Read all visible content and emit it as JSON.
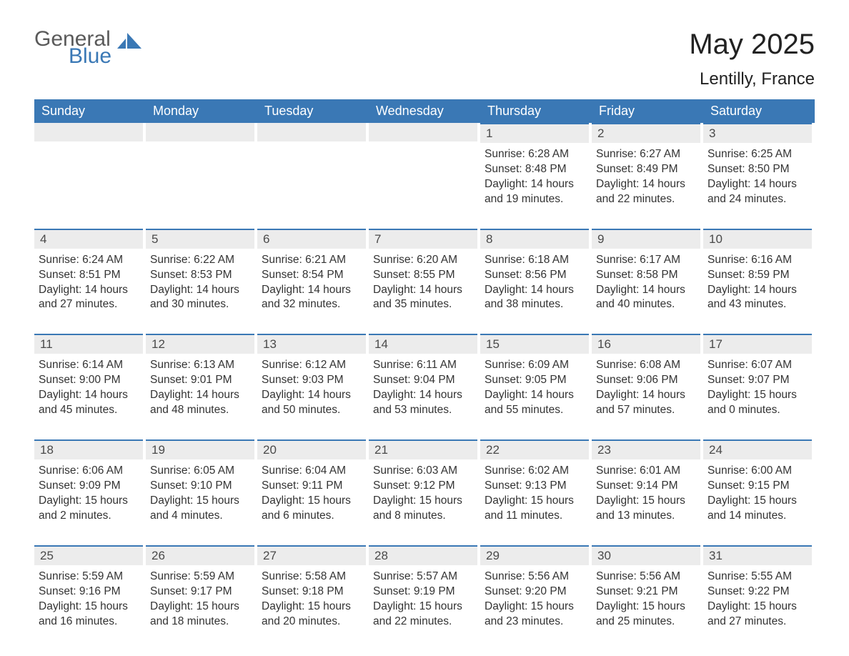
{
  "branding": {
    "logo_word1": "General",
    "logo_word2": "Blue",
    "logo_word1_color": "#5a5a5a",
    "logo_word2_color": "#3a78b5",
    "logo_icon_color": "#3a78b5"
  },
  "header": {
    "title": "May 2025",
    "subtitle": "Lentilly, France"
  },
  "colors": {
    "header_bar": "#3a78b5",
    "header_text": "#ffffff",
    "daynum_bg": "#ececec",
    "daynum_border": "#3a78b5",
    "body_text": "#333333",
    "background": "#ffffff"
  },
  "typography": {
    "title_fontsize": 40,
    "subtitle_fontsize": 24,
    "dayheader_fontsize": 18,
    "daynum_fontsize": 17,
    "body_fontsize": 15.5,
    "font_family": "Arial"
  },
  "calendar": {
    "type": "calendar-grid",
    "columns": [
      "Sunday",
      "Monday",
      "Tuesday",
      "Wednesday",
      "Thursday",
      "Friday",
      "Saturday"
    ],
    "weeks": [
      [
        {
          "empty": true
        },
        {
          "empty": true
        },
        {
          "empty": true
        },
        {
          "empty": true
        },
        {
          "day": "1",
          "sunrise": "Sunrise: 6:28 AM",
          "sunset": "Sunset: 8:48 PM",
          "dl1": "Daylight: 14 hours",
          "dl2": "and 19 minutes."
        },
        {
          "day": "2",
          "sunrise": "Sunrise: 6:27 AM",
          "sunset": "Sunset: 8:49 PM",
          "dl1": "Daylight: 14 hours",
          "dl2": "and 22 minutes."
        },
        {
          "day": "3",
          "sunrise": "Sunrise: 6:25 AM",
          "sunset": "Sunset: 8:50 PM",
          "dl1": "Daylight: 14 hours",
          "dl2": "and 24 minutes."
        }
      ],
      [
        {
          "day": "4",
          "sunrise": "Sunrise: 6:24 AM",
          "sunset": "Sunset: 8:51 PM",
          "dl1": "Daylight: 14 hours",
          "dl2": "and 27 minutes."
        },
        {
          "day": "5",
          "sunrise": "Sunrise: 6:22 AM",
          "sunset": "Sunset: 8:53 PM",
          "dl1": "Daylight: 14 hours",
          "dl2": "and 30 minutes."
        },
        {
          "day": "6",
          "sunrise": "Sunrise: 6:21 AM",
          "sunset": "Sunset: 8:54 PM",
          "dl1": "Daylight: 14 hours",
          "dl2": "and 32 minutes."
        },
        {
          "day": "7",
          "sunrise": "Sunrise: 6:20 AM",
          "sunset": "Sunset: 8:55 PM",
          "dl1": "Daylight: 14 hours",
          "dl2": "and 35 minutes."
        },
        {
          "day": "8",
          "sunrise": "Sunrise: 6:18 AM",
          "sunset": "Sunset: 8:56 PM",
          "dl1": "Daylight: 14 hours",
          "dl2": "and 38 minutes."
        },
        {
          "day": "9",
          "sunrise": "Sunrise: 6:17 AM",
          "sunset": "Sunset: 8:58 PM",
          "dl1": "Daylight: 14 hours",
          "dl2": "and 40 minutes."
        },
        {
          "day": "10",
          "sunrise": "Sunrise: 6:16 AM",
          "sunset": "Sunset: 8:59 PM",
          "dl1": "Daylight: 14 hours",
          "dl2": "and 43 minutes."
        }
      ],
      [
        {
          "day": "11",
          "sunrise": "Sunrise: 6:14 AM",
          "sunset": "Sunset: 9:00 PM",
          "dl1": "Daylight: 14 hours",
          "dl2": "and 45 minutes."
        },
        {
          "day": "12",
          "sunrise": "Sunrise: 6:13 AM",
          "sunset": "Sunset: 9:01 PM",
          "dl1": "Daylight: 14 hours",
          "dl2": "and 48 minutes."
        },
        {
          "day": "13",
          "sunrise": "Sunrise: 6:12 AM",
          "sunset": "Sunset: 9:03 PM",
          "dl1": "Daylight: 14 hours",
          "dl2": "and 50 minutes."
        },
        {
          "day": "14",
          "sunrise": "Sunrise: 6:11 AM",
          "sunset": "Sunset: 9:04 PM",
          "dl1": "Daylight: 14 hours",
          "dl2": "and 53 minutes."
        },
        {
          "day": "15",
          "sunrise": "Sunrise: 6:09 AM",
          "sunset": "Sunset: 9:05 PM",
          "dl1": "Daylight: 14 hours",
          "dl2": "and 55 minutes."
        },
        {
          "day": "16",
          "sunrise": "Sunrise: 6:08 AM",
          "sunset": "Sunset: 9:06 PM",
          "dl1": "Daylight: 14 hours",
          "dl2": "and 57 minutes."
        },
        {
          "day": "17",
          "sunrise": "Sunrise: 6:07 AM",
          "sunset": "Sunset: 9:07 PM",
          "dl1": "Daylight: 15 hours",
          "dl2": "and 0 minutes."
        }
      ],
      [
        {
          "day": "18",
          "sunrise": "Sunrise: 6:06 AM",
          "sunset": "Sunset: 9:09 PM",
          "dl1": "Daylight: 15 hours",
          "dl2": "and 2 minutes."
        },
        {
          "day": "19",
          "sunrise": "Sunrise: 6:05 AM",
          "sunset": "Sunset: 9:10 PM",
          "dl1": "Daylight: 15 hours",
          "dl2": "and 4 minutes."
        },
        {
          "day": "20",
          "sunrise": "Sunrise: 6:04 AM",
          "sunset": "Sunset: 9:11 PM",
          "dl1": "Daylight: 15 hours",
          "dl2": "and 6 minutes."
        },
        {
          "day": "21",
          "sunrise": "Sunrise: 6:03 AM",
          "sunset": "Sunset: 9:12 PM",
          "dl1": "Daylight: 15 hours",
          "dl2": "and 8 minutes."
        },
        {
          "day": "22",
          "sunrise": "Sunrise: 6:02 AM",
          "sunset": "Sunset: 9:13 PM",
          "dl1": "Daylight: 15 hours",
          "dl2": "and 11 minutes."
        },
        {
          "day": "23",
          "sunrise": "Sunrise: 6:01 AM",
          "sunset": "Sunset: 9:14 PM",
          "dl1": "Daylight: 15 hours",
          "dl2": "and 13 minutes."
        },
        {
          "day": "24",
          "sunrise": "Sunrise: 6:00 AM",
          "sunset": "Sunset: 9:15 PM",
          "dl1": "Daylight: 15 hours",
          "dl2": "and 14 minutes."
        }
      ],
      [
        {
          "day": "25",
          "sunrise": "Sunrise: 5:59 AM",
          "sunset": "Sunset: 9:16 PM",
          "dl1": "Daylight: 15 hours",
          "dl2": "and 16 minutes."
        },
        {
          "day": "26",
          "sunrise": "Sunrise: 5:59 AM",
          "sunset": "Sunset: 9:17 PM",
          "dl1": "Daylight: 15 hours",
          "dl2": "and 18 minutes."
        },
        {
          "day": "27",
          "sunrise": "Sunrise: 5:58 AM",
          "sunset": "Sunset: 9:18 PM",
          "dl1": "Daylight: 15 hours",
          "dl2": "and 20 minutes."
        },
        {
          "day": "28",
          "sunrise": "Sunrise: 5:57 AM",
          "sunset": "Sunset: 9:19 PM",
          "dl1": "Daylight: 15 hours",
          "dl2": "and 22 minutes."
        },
        {
          "day": "29",
          "sunrise": "Sunrise: 5:56 AM",
          "sunset": "Sunset: 9:20 PM",
          "dl1": "Daylight: 15 hours",
          "dl2": "and 23 minutes."
        },
        {
          "day": "30",
          "sunrise": "Sunrise: 5:56 AM",
          "sunset": "Sunset: 9:21 PM",
          "dl1": "Daylight: 15 hours",
          "dl2": "and 25 minutes."
        },
        {
          "day": "31",
          "sunrise": "Sunrise: 5:55 AM",
          "sunset": "Sunset: 9:22 PM",
          "dl1": "Daylight: 15 hours",
          "dl2": "and 27 minutes."
        }
      ]
    ]
  }
}
